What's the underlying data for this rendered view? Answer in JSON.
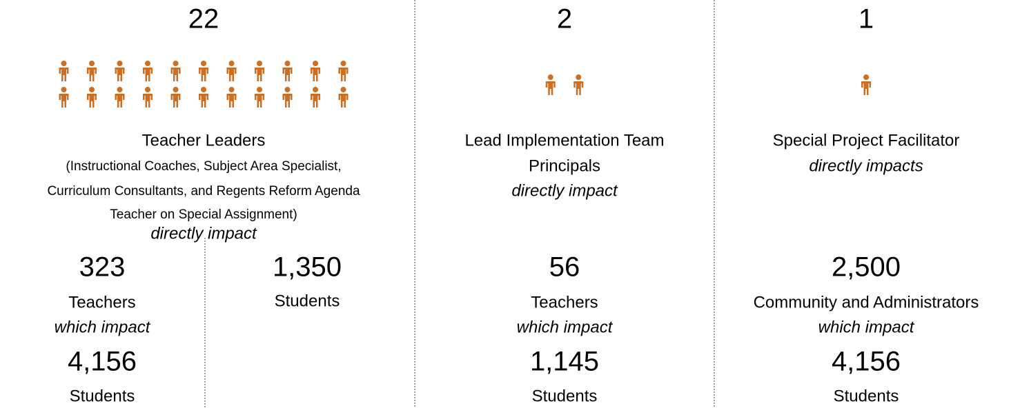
{
  "columns": [
    {
      "count": 22,
      "title": [
        "Teacher Leaders"
      ],
      "details": [
        "(Instructional Coaches, Subject Area Specialist,",
        "Curriculum Consultants, and Regents Reform Agenda",
        "Teacher on Special Assignment)"
      ],
      "verb": "directly impact",
      "impacts": [
        {
          "number": "323",
          "label": "Teachers",
          "verb": "which impact",
          "number2": "4,156",
          "label2": "Students"
        },
        {
          "number": "1,350",
          "label": "Students"
        }
      ]
    },
    {
      "count": 2,
      "title": [
        "Lead Implementation Team",
        "Principals"
      ],
      "verb": "directly impact",
      "impacts": [
        {
          "number": "56",
          "label": "Teachers",
          "verb": "which impact",
          "number2": "1,145",
          "label2": "Students"
        }
      ]
    },
    {
      "count": 1,
      "title": [
        "Special Project Facilitator"
      ],
      "verb": "directly impacts",
      "impacts": [
        {
          "number": "2,500",
          "label": "Community and Administrators",
          "verb": "which impact",
          "number2": "4,156",
          "label2": "Students"
        }
      ]
    }
  ]
}
